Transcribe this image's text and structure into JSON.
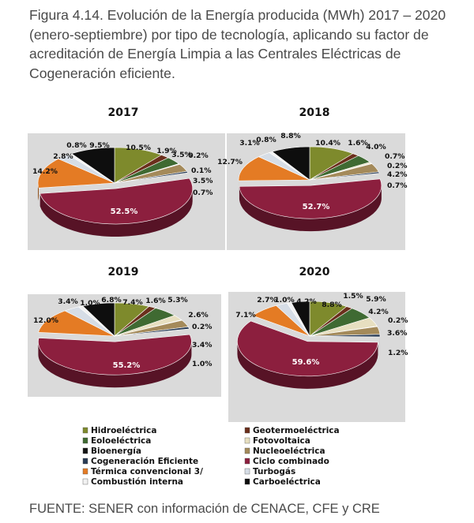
{
  "caption": "Figura 4.14. Evolución de la Energía producida (MWh) 2017 – 2020 (enero-septiembre) por tipo de tecnología, aplicando su factor de acreditación de Energía Limpia a las Centrales Eléctricas de Cogeneración eficiente.",
  "source": "FUENTE: SENER con información de CENACE, CFE y CRE",
  "colors": {
    "Hidroeléctrica": "#7e8a2c",
    "Geotermoeléctrica": "#6b2f1c",
    "Eoloeléctrica": "#3f6a32",
    "Fotovoltaica": "#e7dfc0",
    "Bioenergía": "#141414",
    "Nucleoeléctrica": "#a48a5a",
    "Cogeneración Eficiente": "#283b55",
    "Ciclo combinado": "#8c1f3e",
    "Térmica convencional 3/": "#e47b24",
    "Turbogás": "#d6dde6",
    "Combustión interna": "#f2f2f2",
    "Carboeléctrica": "#0e0e0e"
  },
  "chart_data": [
    {
      "type": "pie",
      "title": "2017",
      "categories": [
        "Hidroeléctrica",
        "Geotermoeléctrica",
        "Eoloeléctrica",
        "Fotovoltaica",
        "Bioenergía",
        "Nucleoeléctrica",
        "Cogeneración Eficiente",
        "Ciclo combinado",
        "Térmica convencional 3/",
        "Turbogás",
        "Combustión interna",
        "Carboeléctrica"
      ],
      "values": [
        10.5,
        1.9,
        3.5,
        0.2,
        0.1,
        3.5,
        0.7,
        52.5,
        14.2,
        2.8,
        0.8,
        9.5
      ],
      "labels": [
        "10.5%",
        "1.9%",
        "3.5%",
        "0.2%",
        "0.1%",
        "3.5%",
        "0.7%",
        "52.5%",
        "14.2%",
        "2.8%",
        "0.8%",
        "9.5%"
      ]
    },
    {
      "type": "pie",
      "title": "2018",
      "categories": [
        "Hidroeléctrica",
        "Geotermoeléctrica",
        "Eoloeléctrica",
        "Fotovoltaica",
        "Bioenergía",
        "Nucleoeléctrica",
        "Cogeneración Eficiente",
        "Ciclo combinado",
        "Térmica convencional 3/",
        "Turbogás",
        "Combustión interna",
        "Carboeléctrica"
      ],
      "values": [
        10.4,
        1.6,
        4.0,
        0.7,
        0.2,
        4.2,
        0.7,
        52.7,
        12.7,
        3.1,
        0.8,
        8.8
      ],
      "labels": [
        "10.4%",
        "1.6%",
        "4.0%",
        "0.7%",
        "0.2%",
        "4.2%",
        "0.7%",
        "52.7%",
        "12.7%",
        "3.1%",
        "0.8%",
        "8.8%"
      ]
    },
    {
      "type": "pie",
      "title": "2019",
      "categories": [
        "Hidroeléctrica",
        "Geotermoeléctrica",
        "Eoloeléctrica",
        "Fotovoltaica",
        "Bioenergía",
        "Nucleoeléctrica",
        "Cogeneración Eficiente",
        "Ciclo combinado",
        "Térmica convencional 3/",
        "Turbogás",
        "Combustión interna",
        "Carboeléctrica"
      ],
      "values": [
        7.4,
        1.6,
        5.3,
        2.6,
        0.2,
        3.4,
        1.0,
        55.2,
        12.0,
        3.4,
        1.0,
        6.8
      ],
      "labels": [
        "7.4%",
        "1.6%",
        "5.3%",
        "2.6%",
        "0.2%",
        "3.4%",
        "1.0%",
        "55.2%",
        "12.0%",
        "3.4%",
        "1.0%",
        "6.8%"
      ]
    },
    {
      "type": "pie",
      "title": "2020",
      "categories": [
        "Hidroeléctrica",
        "Geotermoeléctrica",
        "Eoloeléctrica",
        "Fotovoltaica",
        "Bioenergía",
        "Nucleoeléctrica",
        "Cogeneración Eficiente",
        "Ciclo combinado",
        "Térmica convencional 3/",
        "Turbogás",
        "Combustión interna",
        "Carboeléctrica"
      ],
      "values": [
        8.8,
        1.5,
        5.9,
        4.2,
        0.2,
        3.6,
        1.2,
        59.6,
        7.1,
        2.7,
        1.0,
        4.2
      ],
      "labels": [
        "8.8%",
        "1.5%",
        "5.9%",
        "4.2%",
        "0.2%",
        "3.6%",
        "1.2%",
        "59.6%",
        "7.1%",
        "2.7%",
        "1.0%",
        "4.2%"
      ]
    }
  ],
  "legend": [
    "Hidroeléctrica",
    "Geotermoeléctrica",
    "Eoloeléctrica",
    "Fotovoltaica",
    "Bioenergía",
    "Nucleoeléctrica",
    "Cogeneración Eficiente",
    "Ciclo combinado",
    "Térmica convencional 3/",
    "Turbogás",
    "Combustión interna",
    "Carboeléctrica"
  ]
}
